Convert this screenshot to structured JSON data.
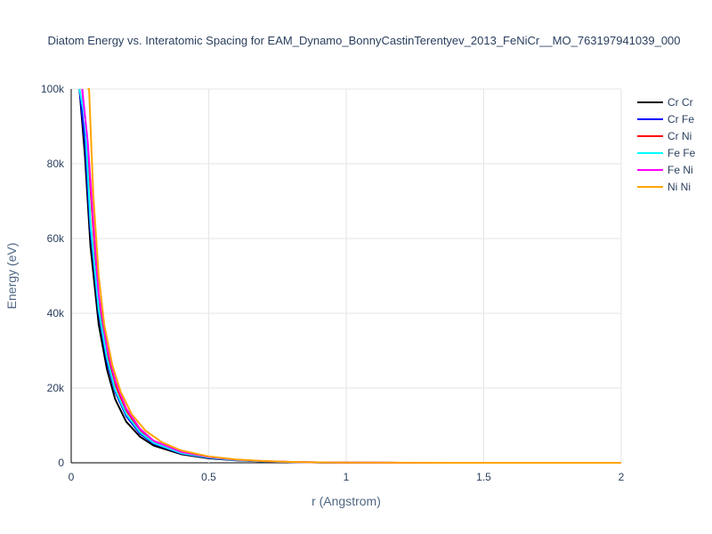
{
  "chart_data": {
    "type": "line",
    "title": "Diatom Energy vs. Interatomic Spacing for EAM_Dynamo_BonnyCastinTerentyev_2013_FeNiCr__MO_763197941039_000",
    "xlabel": "r (Angstrom)",
    "ylabel": "Energy (eV)",
    "xlim": [
      0,
      2
    ],
    "ylim": [
      0,
      100000
    ],
    "x_ticks": [
      0,
      0.5,
      1,
      1.5,
      2
    ],
    "x_tick_labels": [
      "0",
      "0.5",
      "1",
      "1.5",
      "2"
    ],
    "y_ticks": [
      0,
      20000,
      40000,
      60000,
      80000,
      100000
    ],
    "y_tick_labels": [
      "0",
      "20k",
      "40k",
      "60k",
      "80k",
      "100k"
    ],
    "grid": true,
    "legend_position": "top-right",
    "series": [
      {
        "name": "Cr Cr",
        "color": "#000000",
        "x": [
          0.03,
          0.05,
          0.07,
          0.1,
          0.13,
          0.16,
          0.2,
          0.25,
          0.3,
          0.4,
          0.5,
          0.6,
          0.7,
          0.8,
          0.9,
          1.0,
          1.2,
          1.5,
          2.0
        ],
        "y": [
          100000,
          82000,
          58000,
          37000,
          25000,
          17000,
          11000,
          7000,
          4600,
          2300,
          1200,
          650,
          350,
          180,
          90,
          40,
          10,
          0,
          0
        ]
      },
      {
        "name": "Cr Fe",
        "color": "#0000ff",
        "x": [
          0.03,
          0.05,
          0.07,
          0.1,
          0.13,
          0.16,
          0.2,
          0.25,
          0.3,
          0.4,
          0.5,
          0.6,
          0.7,
          0.8,
          0.9,
          1.0,
          1.2,
          1.5,
          2.0
        ],
        "y": [
          100000,
          86000,
          62000,
          40000,
          27000,
          19000,
          12500,
          7800,
          5100,
          2500,
          1350,
          720,
          390,
          200,
          100,
          45,
          12,
          0,
          0
        ]
      },
      {
        "name": "Cr Ni",
        "color": "#ff0000",
        "x": [
          0.04,
          0.06,
          0.08,
          0.1,
          0.13,
          0.16,
          0.2,
          0.25,
          0.3,
          0.4,
          0.5,
          0.6,
          0.7,
          0.8,
          0.9,
          1.0,
          1.2,
          1.5,
          2.0
        ],
        "y": [
          100000,
          84000,
          63000,
          44000,
          30000,
          21000,
          14000,
          8800,
          5700,
          2800,
          1500,
          800,
          430,
          220,
          110,
          50,
          14,
          0,
          0
        ]
      },
      {
        "name": "Fe Fe",
        "color": "#00ffff",
        "x": [
          0.03,
          0.05,
          0.07,
          0.1,
          0.13,
          0.16,
          0.2,
          0.25,
          0.3,
          0.4,
          0.5,
          0.6,
          0.7,
          0.8,
          0.9,
          1.0,
          1.2,
          1.5,
          2.0
        ],
        "y": [
          100000,
          92000,
          64000,
          41000,
          28000,
          19500,
          13000,
          8200,
          5300,
          2600,
          1400,
          740,
          400,
          210,
          105,
          48,
          13,
          0,
          0
        ]
      },
      {
        "name": "Fe Ni",
        "color": "#ff00ff",
        "x": [
          0.04,
          0.06,
          0.08,
          0.1,
          0.13,
          0.16,
          0.2,
          0.25,
          0.3,
          0.4,
          0.5,
          0.6,
          0.7,
          0.8,
          0.9,
          1.0,
          1.2,
          1.5,
          2.0
        ],
        "y": [
          100000,
          86000,
          65000,
          45000,
          31000,
          22000,
          14500,
          9100,
          5900,
          2900,
          1550,
          830,
          450,
          230,
          115,
          52,
          15,
          0,
          0
        ]
      },
      {
        "name": "Ni Ni",
        "color": "#ffa500",
        "x": [
          0.06,
          0.065,
          0.08,
          0.1,
          0.12,
          0.15,
          0.18,
          0.22,
          0.27,
          0.33,
          0.4,
          0.5,
          0.6,
          0.7,
          0.8,
          0.9,
          1.0,
          1.2,
          1.5,
          2.0
        ],
        "y": [
          100000,
          100000,
          72000,
          50000,
          37000,
          26000,
          19000,
          13000,
          8600,
          5500,
          3300,
          1700,
          900,
          490,
          250,
          125,
          56,
          16,
          0,
          0
        ]
      }
    ]
  }
}
